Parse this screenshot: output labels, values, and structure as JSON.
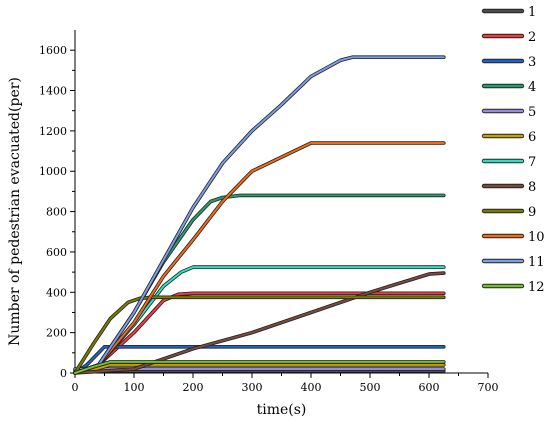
{
  "chart_data": {
    "type": "line",
    "title": "",
    "xlabel": "time(s)",
    "ylabel": "Number of pedestrian evacuated(per)",
    "xlim": [
      0,
      700
    ],
    "ylim": [
      0,
      1700
    ],
    "x_ticks": [
      0,
      100,
      200,
      300,
      400,
      500,
      600,
      700
    ],
    "y_ticks": [
      0,
      200,
      400,
      600,
      800,
      1000,
      1200,
      1400,
      1600
    ],
    "x_tick_labels": [
      "0",
      "100",
      "200",
      "300",
      "400",
      "500",
      "600",
      "700"
    ],
    "y_tick_labels": [
      "0",
      "200",
      "400",
      "600",
      "800",
      "1000",
      "1200",
      "1400",
      "1600"
    ],
    "legend_position": "right",
    "grid": false,
    "series": [
      {
        "name": "1",
        "color": "#4d4d4d",
        "x": [
          0,
          625
        ],
        "y": [
          10,
          10
        ]
      },
      {
        "name": "2",
        "color": "#ee3b3b",
        "x": [
          0,
          40,
          100,
          150,
          175,
          200,
          625
        ],
        "y": [
          0,
          40,
          200,
          360,
          390,
          395,
          395
        ]
      },
      {
        "name": "3",
        "color": "#1e64c8",
        "x": [
          0,
          20,
          50,
          625
        ],
        "y": [
          0,
          40,
          130,
          130
        ]
      },
      {
        "name": "4",
        "color": "#2a9d6f",
        "x": [
          0,
          40,
          100,
          150,
          200,
          230,
          250,
          280,
          625
        ],
        "y": [
          0,
          40,
          300,
          550,
          760,
          850,
          870,
          880,
          880
        ]
      },
      {
        "name": "5",
        "color": "#9b8be0",
        "x": [
          0,
          625
        ],
        "y": [
          20,
          20
        ]
      },
      {
        "name": "6",
        "color": "#c8a000",
        "x": [
          0,
          30,
          60,
          625
        ],
        "y": [
          0,
          15,
          40,
          40
        ]
      },
      {
        "name": "7",
        "color": "#2ee0c0",
        "x": [
          0,
          40,
          100,
          150,
          180,
          200,
          625
        ],
        "y": [
          0,
          40,
          240,
          430,
          500,
          525,
          525
        ]
      },
      {
        "name": "8",
        "color": "#7b4a3a",
        "x": [
          0,
          100,
          200,
          300,
          400,
          500,
          600,
          625
        ],
        "y": [
          0,
          20,
          120,
          200,
          300,
          400,
          490,
          495
        ]
      },
      {
        "name": "9",
        "color": "#7a7a00",
        "x": [
          0,
          30,
          60,
          90,
          110,
          130,
          625
        ],
        "y": [
          0,
          140,
          270,
          350,
          370,
          375,
          375
        ]
      },
      {
        "name": "10",
        "color": "#f06a18",
        "x": [
          0,
          40,
          100,
          150,
          200,
          250,
          300,
          350,
          400,
          625
        ],
        "y": [
          0,
          40,
          250,
          480,
          660,
          850,
          1000,
          1070,
          1140,
          1140
        ]
      },
      {
        "name": "11",
        "color": "#7b9ee8",
        "x": [
          0,
          40,
          100,
          150,
          200,
          250,
          300,
          350,
          400,
          450,
          470,
          625
        ],
        "y": [
          0,
          40,
          300,
          560,
          820,
          1040,
          1200,
          1330,
          1470,
          1550,
          1565,
          1565
        ]
      },
      {
        "name": "12",
        "color": "#72c02c",
        "x": [
          0,
          30,
          60,
          625
        ],
        "y": [
          0,
          30,
          55,
          55
        ]
      }
    ]
  }
}
